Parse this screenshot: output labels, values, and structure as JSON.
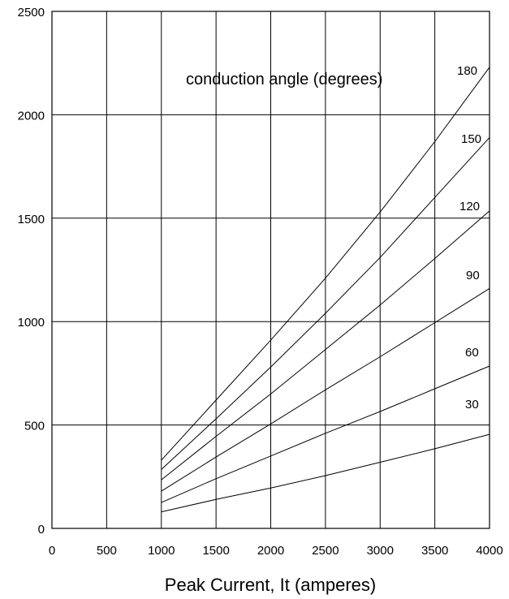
{
  "chart_data": {
    "type": "line",
    "title": "",
    "xlabel": "Peak Current, It (amperes)",
    "ylabel": "",
    "annotation": "conduction angle (degrees)",
    "xlim": [
      0,
      4000
    ],
    "ylim": [
      0,
      2500
    ],
    "x_ticks": [
      0,
      500,
      1000,
      1500,
      2000,
      2500,
      3000,
      3500,
      4000
    ],
    "y_ticks": [
      0,
      500,
      1000,
      1500,
      2000,
      2500
    ],
    "grid": true,
    "x": [
      1000,
      1500,
      2000,
      2500,
      3000,
      3500,
      4000
    ],
    "series": [
      {
        "name": "180",
        "values": [
          330,
          620,
          910,
          1210,
          1530,
          1870,
          2230
        ]
      },
      {
        "name": "150",
        "values": [
          285,
          530,
          780,
          1040,
          1310,
          1600,
          1890
        ]
      },
      {
        "name": "120",
        "values": [
          235,
          445,
          650,
          865,
          1080,
          1305,
          1535
        ]
      },
      {
        "name": "90",
        "values": [
          180,
          345,
          505,
          670,
          830,
          995,
          1160
        ]
      },
      {
        "name": "60",
        "values": [
          125,
          240,
          350,
          460,
          565,
          675,
          785
        ]
      },
      {
        "name": "30",
        "values": [
          80,
          140,
          195,
          255,
          320,
          385,
          455
        ]
      }
    ]
  }
}
